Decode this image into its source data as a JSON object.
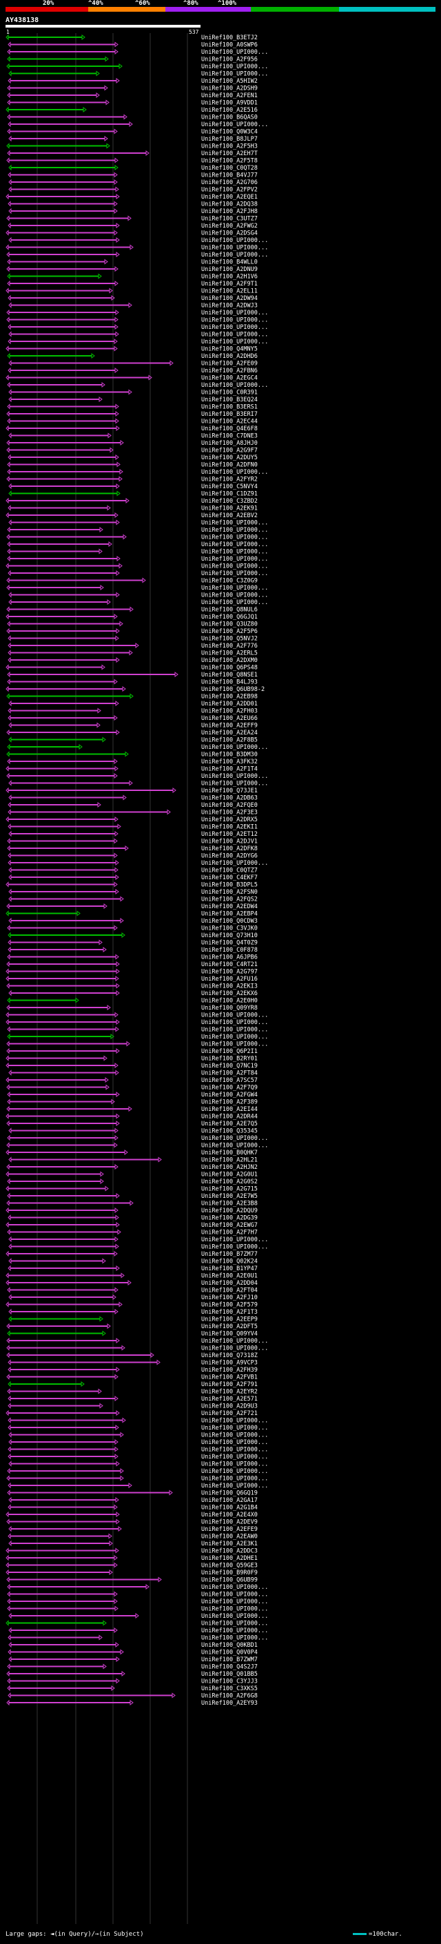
{
  "query": {
    "id": "AY438138",
    "start": "1",
    "end": "537"
  },
  "scale": {
    "labels": [
      "20%",
      "^40%",
      "^60%",
      "^80%",
      "^100%"
    ],
    "colors": [
      "#e00000",
      "#ff8000",
      "#a020f0",
      "#00b000",
      "#00c0c0"
    ]
  },
  "colors": {
    "green": "#00c000",
    "magenta": "#d040d0",
    "background": "#000000"
  },
  "legend": {
    "gaps_label": "Large gaps: ◄(in Query)/→(in Subject)",
    "scale_label": "=100char."
  },
  "hits": [
    "UniRef100_B3ETJ2",
    "UniRef100_A0SWP6",
    "UniRef100_UPI000...",
    "UniRef100_A2F956",
    "UniRef100_UPI000...",
    "UniRef100_UPI000...",
    "UniRef100_A5HIW2",
    "UniRef100_A2DSH9",
    "UniRef100_A2FEN1",
    "UniRef100_A9VDD1",
    "UniRef100_A2E516",
    "UniRef100_B6QAS0",
    "UniRef100_UPI000...",
    "UniRef100_Q0W3C4",
    "UniRef100_B8JLP7",
    "UniRef100_A2F5H3",
    "UniRef100_A2EH7T",
    "UniRef100_A2F5T8",
    "UniRef100_C0QT28",
    "UniRef100_B4VJ77",
    "UniRef100_A2G706",
    "UniRef100_A2FPV2",
    "UniRef100_A2EQE1",
    "UniRef100_A2DQ38",
    "UniRef100_A2FJH8",
    "UniRef100_C3UTZ7",
    "UniRef100_A2FWG2",
    "UniRef100_A2DSG4",
    "UniRef100_UPI000...",
    "UniRef100_UPI000...",
    "UniRef100_UPI000...",
    "UniRef100_B4WLL0",
    "UniRef100_A2DNU9",
    "UniRef100_A2H1V6",
    "UniRef100_A2F9T1",
    "UniRef100_A2EL11",
    "UniRef100_A2DW94",
    "UniRef100_A2DWJ3",
    "UniRef100_UPI000...",
    "UniRef100_UPI000...",
    "UniRef100_UPI000...",
    "UniRef100_UPI000...",
    "UniRef100_UPI000...",
    "UniRef100_Q4MNY5",
    "UniRef100_A2DHD6",
    "UniRef100_A2FE09",
    "UniRef100_A2FBN6",
    "UniRef100_A2EGC4",
    "UniRef100_UPI000...",
    "UniRef100_C0R391",
    "UniRef100_B3EQ24",
    "UniRef100_B3ERS1",
    "UniRef100_B3ERI7",
    "UniRef100_A2EC44",
    "UniRef100_Q4E6F8",
    "UniRef100_C7DNE3",
    "UniRef100_A8JHJ0",
    "UniRef100_A2G9F7",
    "UniRef100_A2DUY5",
    "UniRef100_A2DFN0",
    "UniRef100_UPI000...",
    "UniRef100_A2FYR2",
    "UniRef100_C5NVY4",
    "UniRef100_C1DZ91",
    "UniRef100_C3ZBD2",
    "UniRef100_A2EK91",
    "UniRef100_A2EBV2",
    "UniRef100_UPI000...",
    "UniRef100_UPI000...",
    "UniRef100_UPI000...",
    "UniRef100_UPI000...",
    "UniRef100_UPI000...",
    "UniRef100_UPI000...",
    "UniRef100_UPI000...",
    "UniRef100_UPI000...",
    "UniRef100_C3Z0G9",
    "UniRef100_UPI000...",
    "UniRef100_UPI000...",
    "UniRef100_UPI000...",
    "UniRef100_Q8NUL6",
    "UniRef100_Q6GJQ1",
    "UniRef100_Q3UZ80",
    "UniRef100_A2F5P6",
    "UniRef100_Q5NVJ2",
    "UniRef100_A2F776",
    "UniRef100_A2ERL5",
    "UniRef100_A2DXM0",
    "UniRef100_Q6PS48",
    "UniRef100_Q8NSE1",
    "UniRef100_B4LJ93",
    "UniRef100_Q6UB98-2",
    "UniRef100_A2EB98",
    "UniRef100_A2DD01",
    "UniRef100_A2FH03",
    "UniRef100_A2EU66",
    "UniRef100_A2EFF9",
    "UniRef100_A2EA24",
    "UniRef100_A2F8B5",
    "UniRef100_UPI000...",
    "UniRef100_B3DM30",
    "UniRef100_A3FK32",
    "UniRef100_A2F1T4",
    "UniRef100_UPI000...",
    "UniRef100_UPI000...",
    "UniRef100_Q73JE1",
    "UniRef100_A2DB63",
    "UniRef100_A2FQE0",
    "UniRef100_A2F3E3",
    "UniRef100_A2DRX5",
    "UniRef100_A2EKI1",
    "UniRef100_A2ET12",
    "UniRef100_A2DJV1",
    "UniRef100_A2DFK8",
    "UniRef100_A2DYG6",
    "UniRef100_UPI000...",
    "UniRef100_C0QTZ7",
    "UniRef100_C4EKF7",
    "UniRef100_B3DPL5",
    "UniRef100_A2FSN0",
    "UniRef100_A2FQS2",
    "UniRef100_A2EDW4",
    "UniRef100_A2EBP4",
    "UniRef100_Q0CDW3",
    "UniRef100_C3VJK0",
    "UniRef100_Q73H10",
    "UniRef100_Q4T0Z9",
    "UniRef100_C0F878",
    "UniRef100_A6JPB6",
    "UniRef100_C4RT21",
    "UniRef100_A2G797",
    "UniRef100_A2FU16",
    "UniRef100_A2EKI3",
    "UniRef100_A2EKX6",
    "UniRef100_A2E0H0",
    "UniRef100_Q09YR8",
    "UniRef100_UPI000...",
    "UniRef100_UPI000...",
    "UniRef100_UPI000...",
    "UniRef100_UPI000...",
    "UniRef100_UPI000...",
    "UniRef100_Q6P2I1",
    "UniRef100_B2RY01",
    "UniRef100_Q7NC19",
    "UniRef100_A2FT84",
    "UniRef100_A7SC57",
    "UniRef100_A2F7Q9",
    "UniRef100_A2FGW4",
    "UniRef100_A2F389",
    "UniRef100_A2EI44",
    "UniRef100_A2DR44",
    "UniRef100_A2E7Q5",
    "UniRef100_Q35345",
    "UniRef100_UPI000...",
    "UniRef100_UPI000...",
    "UniRef100_B0QHK7",
    "UniRef100_A2HL21",
    "UniRef100_A2HJN2",
    "UniRef100_A2G0U1",
    "UniRef100_A2G0S2",
    "UniRef100_A2G715",
    "UniRef100_A2E7W5",
    "UniRef100_A2E3B8",
    "UniRef100_A2DQU9",
    "UniRef100_A2DG39",
    "UniRef100_A2EWG7",
    "UniRef100_A2F7H7",
    "UniRef100_UPI000...",
    "UniRef100_UPI000...",
    "UniRef100_B7ZM77",
    "UniRef100_Q02K24",
    "UniRef100_B1YP47",
    "UniRef100_A2E0U1",
    "UniRef100_A2DD04",
    "UniRef100_A2FT04",
    "UniRef100_A2FJ10",
    "UniRef100_A2F579",
    "UniRef100_A2F1T3",
    "UniRef100_A2EEP9",
    "UniRef100_A2DFT5",
    "UniRef100_Q09YV4",
    "UniRef100_UPI000...",
    "UniRef100_UPI000...",
    "UniRef100_Q7318Z",
    "UniRef100_A9VCP3",
    "UniRef100_A2FH39",
    "UniRef100_A2FVB1",
    "UniRef100_A2F791",
    "UniRef100_A2EYR2",
    "UniRef100_A2E571",
    "UniRef100_A2D9U3",
    "UniRef100_A2F721",
    "UniRef100_UPI000...",
    "UniRef100_UPI000...",
    "UniRef100_UPI000...",
    "UniRef100_UPI000...",
    "UniRef100_UPI000...",
    "UniRef100_UPI000...",
    "UniRef100_UPI000...",
    "UniRef100_UPI000...",
    "UniRef100_UPI000...",
    "UniRef100_UPI000...",
    "UniRef100_Q6GQ19",
    "UniRef100_A2GA17",
    "UniRef100_A2G1B4",
    "UniRef100_A2E4X0",
    "UniRef100_A2DEV9",
    "UniRef100_A2EFE9",
    "UniRef100_A2EAW0",
    "UniRef100_A2E3K1",
    "UniRef100_A2DDC3",
    "UniRef100_A2DHE1",
    "UniRef100_Q59GE3",
    "UniRef100_B9R0F9",
    "UniRef100_Q6UB99",
    "UniRef100_UPI000...",
    "UniRef100_UPI000...",
    "UniRef100_UPI000...",
    "UniRef100_UPI000...",
    "UniRef100_UPI000...",
    "UniRef100_UPI000...",
    "UniRef100_UPI000...",
    "UniRef100_UPI000...",
    "UniRef100_Q0KBD1",
    "UniRef100_Q0V0P4",
    "UniRef100_B7ZWM7",
    "UniRef100_Q4S2J7",
    "UniRef100_Q01BB5",
    "UniRef100_C3YJJ3",
    "UniRef100_C3XKS5",
    "UniRef100_A2F6G8",
    "UniRef100_A2EY93"
  ]
}
